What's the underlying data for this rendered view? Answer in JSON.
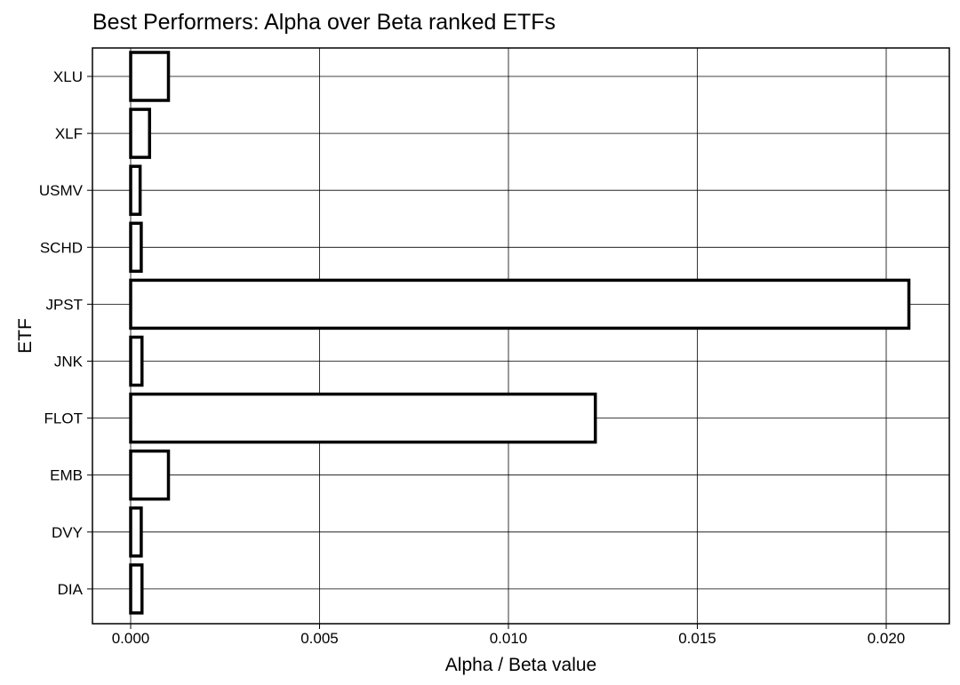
{
  "chart_data": {
    "type": "bar",
    "orientation": "horizontal",
    "title": "Best Performers: Alpha over Beta ranked ETFs",
    "xlabel": "Alpha / Beta value",
    "ylabel": "ETF",
    "categories": [
      "XLU",
      "XLF",
      "USMV",
      "SCHD",
      "JPST",
      "JNK",
      "FLOT",
      "EMB",
      "DVY",
      "DIA"
    ],
    "values": [
      0.001,
      0.0005,
      0.00025,
      0.00028,
      0.0206,
      0.0003,
      0.0123,
      0.001,
      0.00028,
      0.0003
    ],
    "xlim": [
      -0.001,
      0.0215
    ],
    "xticks": [
      0.0,
      0.005,
      0.01,
      0.015,
      0.02
    ],
    "xtick_labels": [
      "0.000",
      "0.005",
      "0.010",
      "0.015",
      "0.020"
    ],
    "grid": true,
    "bar_fill": "#ffffff",
    "bar_edge": "#000000",
    "legend": false
  }
}
